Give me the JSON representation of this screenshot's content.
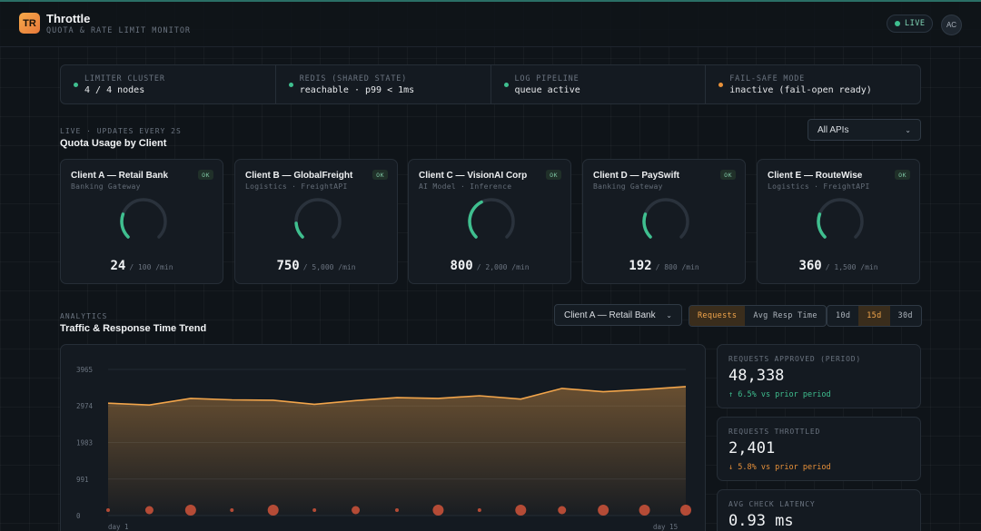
{
  "app": {
    "logo": "TR",
    "title": "Throttle",
    "subtitle": "QUOTA & RATE LIMIT MONITOR",
    "live_label": "LIVE",
    "user_initials": "AC"
  },
  "colors": {
    "accent": "#f2a54b",
    "ok": "#3fbf8f",
    "warn": "#e8913a",
    "danger": "#d0543a"
  },
  "status": [
    {
      "label": "LIMITER CLUSTER",
      "value": "4 / 4 nodes",
      "color": "#3fbf8f"
    },
    {
      "label": "REDIS (SHARED STATE)",
      "value": "reachable · p99 < 1ms",
      "color": "#3fbf8f"
    },
    {
      "label": "LOG PIPELINE",
      "value": "queue active",
      "color": "#3fbf8f"
    },
    {
      "label": "FAIL-SAFE MODE",
      "value": "inactive (fail-open ready)",
      "color": "#e8913a"
    }
  ],
  "quota": {
    "eyebrow": "LIVE · UPDATES EVERY 2S",
    "title": "Quota Usage by Client",
    "filter": "All APIs",
    "clients": [
      {
        "name": "Client A — Retail Bank",
        "sub": "Banking Gateway",
        "badge": "OK",
        "value": "24",
        "limit": "/ 100 /min",
        "fraction": 0.24
      },
      {
        "name": "Client B — GlobalFreight",
        "sub": "Logistics · FreightAPI",
        "badge": "OK",
        "value": "750",
        "limit": "/ 5,000 /min",
        "fraction": 0.15
      },
      {
        "name": "Client C — VisionAI Corp",
        "sub": "AI Model · Inference",
        "badge": "OK",
        "value": "800",
        "limit": "/ 2,000 /min",
        "fraction": 0.4
      },
      {
        "name": "Client D — PaySwift",
        "sub": "Banking Gateway",
        "badge": "OK",
        "value": "192",
        "limit": "/ 800 /min",
        "fraction": 0.24
      },
      {
        "name": "Client E — RouteWise",
        "sub": "Logistics · FreightAPI",
        "badge": "OK",
        "value": "360",
        "limit": "/ 1,500 /min",
        "fraction": 0.24
      }
    ]
  },
  "analytics": {
    "eyebrow": "ANALYTICS",
    "title": "Traffic & Response Time Trend",
    "client_select": "Client A — Retail Bank",
    "metric_tabs": [
      "Requests",
      "Avg Resp Time"
    ],
    "metric_active": 0,
    "range_tabs": [
      "10d",
      "15d",
      "30d"
    ],
    "range_active": 1
  },
  "chart_data": {
    "type": "area",
    "x_tick_labels": [
      "day 1",
      "day 15"
    ],
    "yticks": [
      0,
      991,
      1983,
      2974,
      3965
    ],
    "ylim": [
      0,
      3965
    ],
    "x": [
      1,
      2,
      3,
      4,
      5,
      6,
      7,
      8,
      9,
      10,
      11,
      12,
      13,
      14,
      15
    ],
    "series": [
      {
        "values": [
          3050,
          3000,
          3180,
          3140,
          3130,
          3020,
          3120,
          3200,
          3180,
          3250,
          3160,
          3450,
          3360,
          3420,
          3500
        ]
      }
    ],
    "throttled_markers": [
      1,
      2,
      3,
      1,
      3,
      1,
      2,
      1,
      3,
      1,
      3,
      2,
      3,
      3,
      3
    ],
    "grid": true
  },
  "stats": [
    {
      "label": "REQUESTS APPROVED (PERIOD)",
      "value": "48,338",
      "delta": "↑ 6.5% vs prior period",
      "tone": "up"
    },
    {
      "label": "REQUESTS THROTTLED",
      "value": "2,401",
      "delta": "↓ 5.8% vs prior period",
      "tone": "warn"
    },
    {
      "label": "AVG CHECK LATENCY",
      "value": "0.93 ms",
      "delta": "",
      "tone": "up"
    }
  ]
}
